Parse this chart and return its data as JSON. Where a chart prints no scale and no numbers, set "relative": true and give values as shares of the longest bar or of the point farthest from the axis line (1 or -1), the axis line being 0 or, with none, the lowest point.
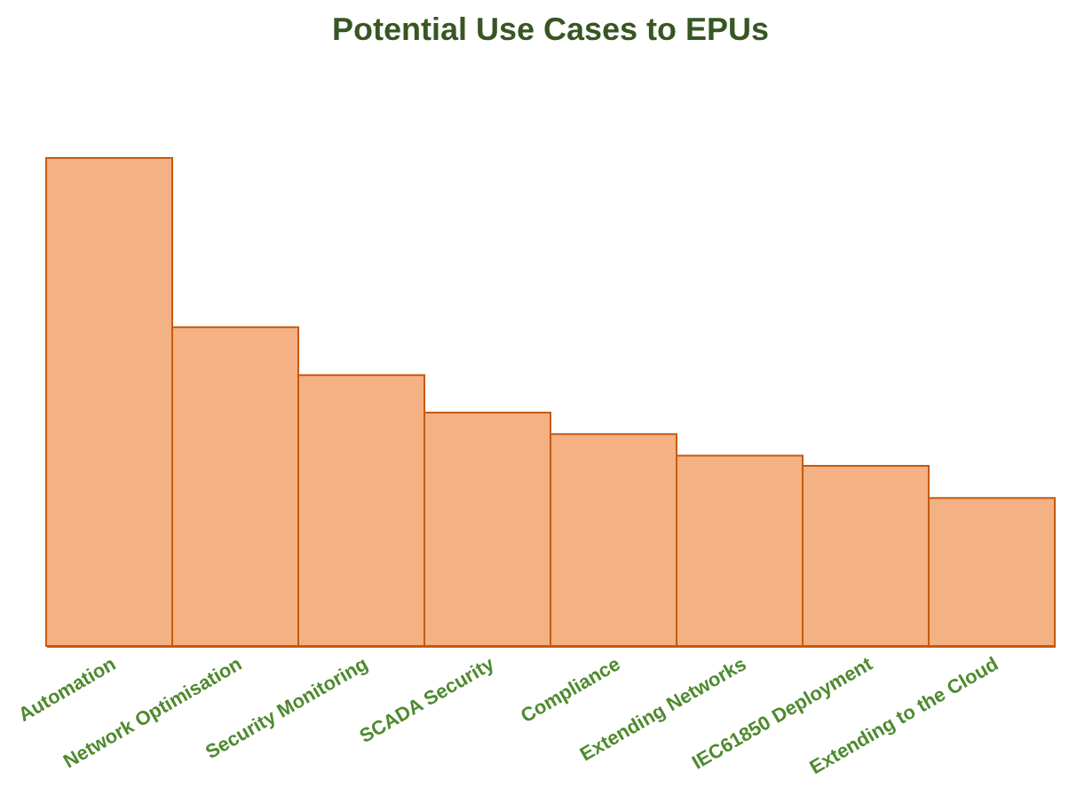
{
  "chart_data": {
    "type": "bar",
    "title": "Potential Use Cases to EPUs",
    "categories": [
      "Automation",
      "Network Optimisation",
      "Security Monitoring",
      "SCADA Security",
      "Compliance",
      "Extending Networks",
      "IEC61850 Deployment",
      "Extending to the Cloud"
    ],
    "values": [
      1,
      0.653,
      0.555,
      0.478,
      0.434,
      0.39,
      0.369,
      0.303
    ],
    "color": "#f4b183",
    "relative": true
  }
}
